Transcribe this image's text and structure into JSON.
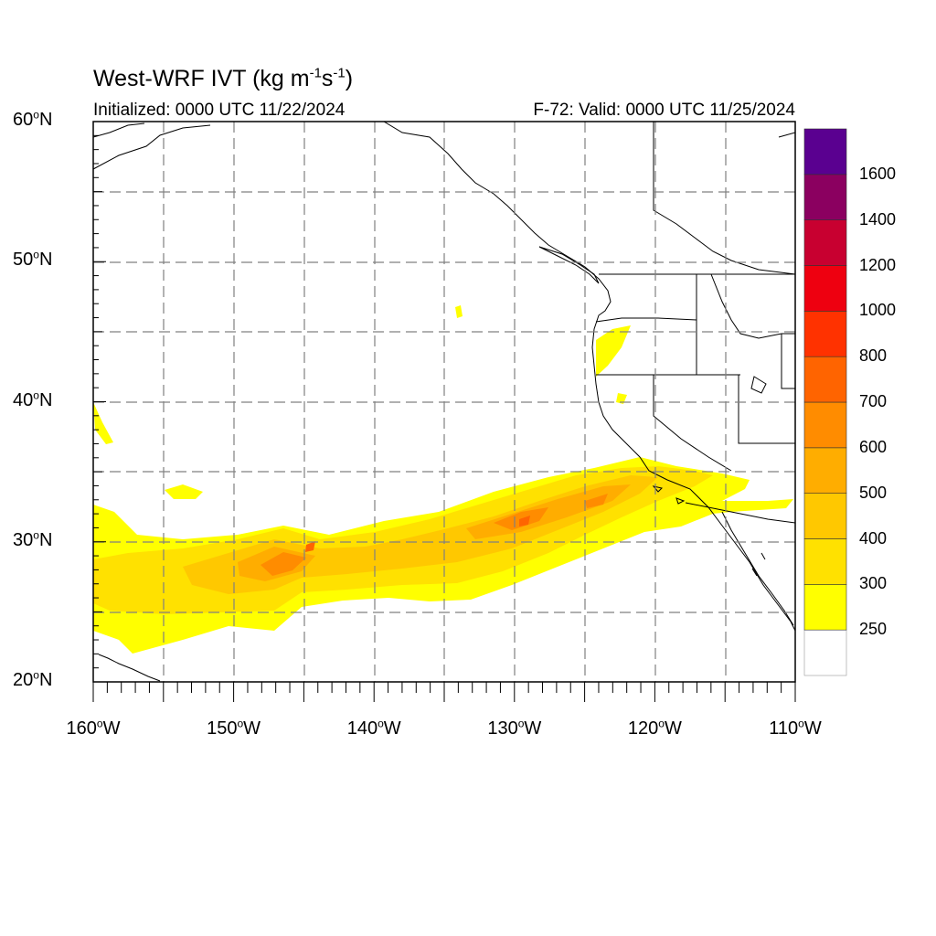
{
  "title": {
    "prefix": "West-WRF IVT (kg m",
    "exp1": "-1",
    "mid": "s",
    "exp2": "-1",
    "suffix": ")"
  },
  "initialized": "Initialized: 0000 UTC 11/22/2024",
  "valid": "F-72: Valid: 0000 UTC 11/25/2024",
  "lat_labels": [
    {
      "value": "60",
      "unit": "o",
      "hemi": "N",
      "lat": 60
    },
    {
      "value": "50",
      "unit": "o",
      "hemi": "N",
      "lat": 50
    },
    {
      "value": "40",
      "unit": "o",
      "hemi": "N",
      "lat": 40
    },
    {
      "value": "30",
      "unit": "o",
      "hemi": "N",
      "lat": 30
    },
    {
      "value": "20",
      "unit": "o",
      "hemi": "N",
      "lat": 20
    }
  ],
  "lon_labels": [
    {
      "value": "160",
      "unit": "o",
      "hemi": "W",
      "lon": -160
    },
    {
      "value": "150",
      "unit": "o",
      "hemi": "W",
      "lon": -150
    },
    {
      "value": "140",
      "unit": "o",
      "hemi": "W",
      "lon": -140
    },
    {
      "value": "130",
      "unit": "o",
      "hemi": "W",
      "lon": -130
    },
    {
      "value": "120",
      "unit": "o",
      "hemi": "W",
      "lon": -120
    },
    {
      "value": "110",
      "unit": "o",
      "hemi": "W",
      "lon": -110
    }
  ],
  "map_extent": {
    "lon": [
      -160,
      -110
    ],
    "lat": [
      20,
      60
    ]
  },
  "colorbar": {
    "colors": [
      "#ffffff",
      "#ffff00",
      "#ffe100",
      "#ffc800",
      "#ffad00",
      "#ff8c00",
      "#ff6400",
      "#ff3200",
      "#ee0010",
      "#c80030",
      "#8b0060",
      "#5a0090"
    ],
    "labels": [
      "250",
      "300",
      "400",
      "500",
      "600",
      "700",
      "800",
      "1000",
      "1200",
      "1400",
      "1600"
    ]
  }
}
